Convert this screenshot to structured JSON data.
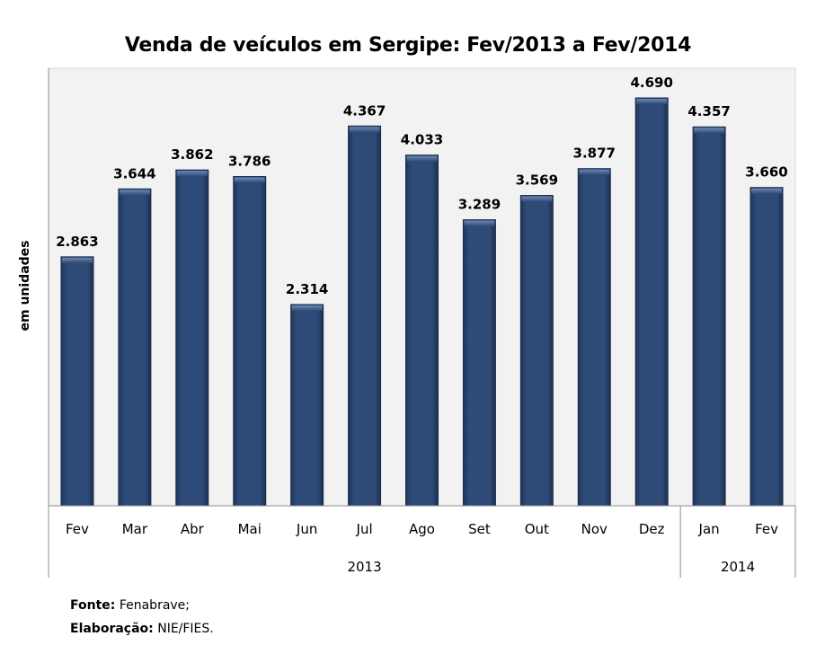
{
  "chart_data": {
    "type": "bar",
    "title": "Venda de veículos em Sergipe: Fev/2013 a Fev/2014",
    "ylabel": "em unidades",
    "xlabel": "",
    "categories": [
      "Fev",
      "Mar",
      "Abr",
      "Mai",
      "Jun",
      "Jul",
      "Ago",
      "Set",
      "Out",
      "Nov",
      "Dez",
      "Jan",
      "Fev"
    ],
    "values": [
      2863,
      3644,
      3862,
      3786,
      2314,
      4367,
      4033,
      3289,
      3569,
      3877,
      4690,
      4357,
      3660
    ],
    "value_labels": [
      "2.863",
      "3.644",
      "3.862",
      "3.786",
      "2.314",
      "4.367",
      "4.033",
      "3.289",
      "3.569",
      "3.877",
      "4.690",
      "4.357",
      "3.660"
    ],
    "groups": [
      {
        "label": "2013",
        "count": 11
      },
      {
        "label": "2014",
        "count": 2
      }
    ],
    "ylim": [
      0,
      5000
    ],
    "grid": false,
    "legend": "none",
    "colors": {
      "bar": "#2b4570",
      "bar_edge": "#1a2d4d",
      "plot_bg": "#f2f2f2"
    }
  },
  "source": {
    "fonte_label": "Fonte:",
    "fonte_value": " Fenabrave;",
    "elaboracao_label": "Elaboração:",
    "elaboracao_value": " NIE/FIES."
  }
}
